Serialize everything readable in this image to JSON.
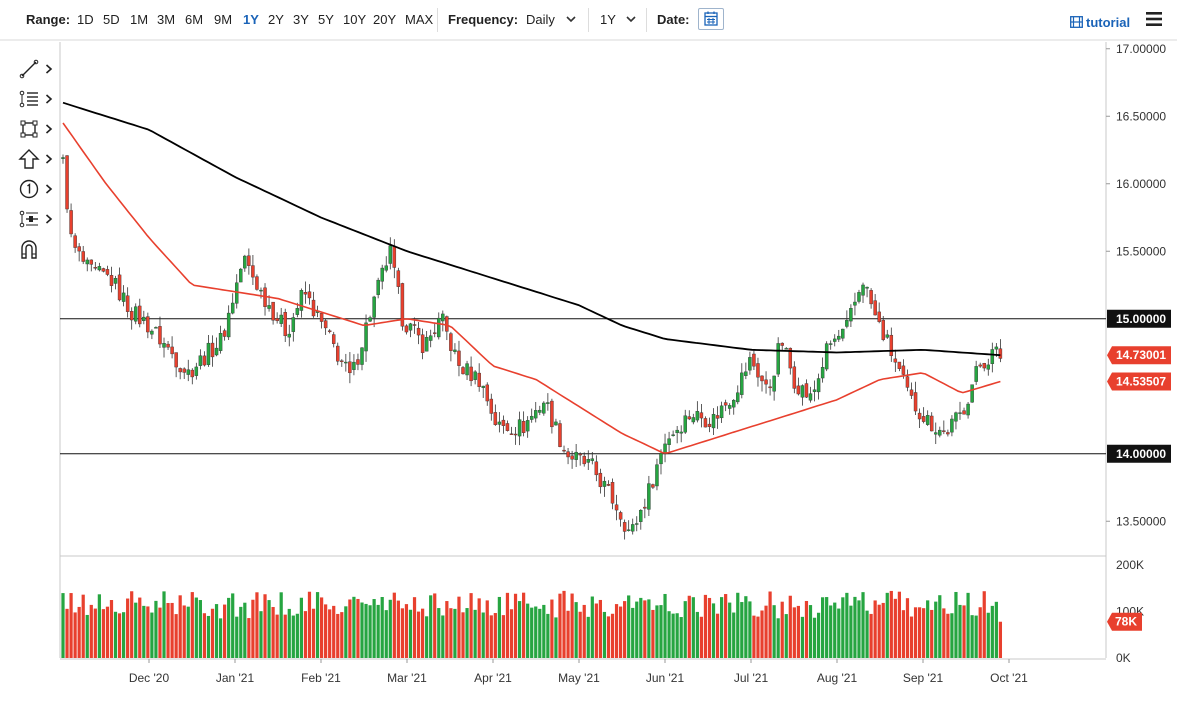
{
  "toolbar": {
    "range_label": "Range:",
    "ranges": [
      "1D",
      "5D",
      "1M",
      "3M",
      "6M",
      "9M",
      "1Y",
      "2Y",
      "3Y",
      "5Y",
      "10Y",
      "20Y",
      "MAX"
    ],
    "active_range": "1Y",
    "frequency_label": "Frequency:",
    "frequency_value": "Daily",
    "period_value": "1Y",
    "date_label": "Date:",
    "tutorial_label": "tutorial"
  },
  "tools": [
    "line-tool-icon",
    "fibonacci-tool-icon",
    "rectangle-tool-icon",
    "arrow-tool-icon",
    "counter-tool-icon",
    "measure-tool-icon",
    "magnet-tool-icon"
  ],
  "chart_data": {
    "type": "candlestick",
    "x_tick_labels": [
      "Dec '20",
      "Jan '21",
      "Feb '21",
      "Mar '21",
      "Apr '21",
      "May '21",
      "Jun '21",
      "Jul '21",
      "Aug '21",
      "Sep '21",
      "Oct '21"
    ],
    "y_tick_labels": [
      "17.00000",
      "16.50000",
      "16.00000",
      "15.50000",
      "13.50000"
    ],
    "ylim": [
      13.25,
      17.05
    ],
    "horizontal_lines": [
      {
        "value": 15.0,
        "label": "15.00000"
      },
      {
        "value": 14.0,
        "label": "14.00000"
      }
    ],
    "price_badges": [
      {
        "label": "14.73001",
        "value": 14.73,
        "color": "#e8402e"
      },
      {
        "label": "14.53507",
        "value": 14.535,
        "color": "#e8402e"
      }
    ],
    "colors": {
      "up": "#26a541",
      "down": "#e8402e",
      "ma_fast": "#e8402e",
      "ma_slow": "#000000"
    },
    "price_keypoints": [
      {
        "m": 0.0,
        "p": 16.15
      },
      {
        "m": 0.1,
        "p": 15.55
      },
      {
        "m": 0.3,
        "p": 15.35
      },
      {
        "m": 0.55,
        "p": 15.3
      },
      {
        "m": 0.8,
        "p": 15.05
      },
      {
        "m": 1.0,
        "p": 14.95
      },
      {
        "m": 1.45,
        "p": 14.6
      },
      {
        "m": 1.85,
        "p": 14.85
      },
      {
        "m": 2.1,
        "p": 15.45
      },
      {
        "m": 2.3,
        "p": 15.2
      },
      {
        "m": 2.6,
        "p": 14.9
      },
      {
        "m": 2.8,
        "p": 15.2
      },
      {
        "m": 3.1,
        "p": 14.85
      },
      {
        "m": 3.35,
        "p": 14.55
      },
      {
        "m": 3.55,
        "p": 15.0
      },
      {
        "m": 3.8,
        "p": 15.5
      },
      {
        "m": 3.95,
        "p": 15.0
      },
      {
        "m": 4.2,
        "p": 14.8
      },
      {
        "m": 4.4,
        "p": 15.0
      },
      {
        "m": 4.6,
        "p": 14.65
      },
      {
        "m": 4.85,
        "p": 14.55
      },
      {
        "m": 5.05,
        "p": 14.2
      },
      {
        "m": 5.35,
        "p": 14.2
      },
      {
        "m": 5.6,
        "p": 14.4
      },
      {
        "m": 5.85,
        "p": 14.0
      },
      {
        "m": 6.15,
        "p": 13.9
      },
      {
        "m": 6.45,
        "p": 13.6
      },
      {
        "m": 6.6,
        "p": 13.4
      },
      {
        "m": 6.8,
        "p": 13.7
      },
      {
        "m": 7.0,
        "p": 14.1
      },
      {
        "m": 7.3,
        "p": 14.3
      },
      {
        "m": 7.55,
        "p": 14.25
      },
      {
        "m": 7.8,
        "p": 14.45
      },
      {
        "m": 8.0,
        "p": 14.7
      },
      {
        "m": 8.2,
        "p": 14.45
      },
      {
        "m": 8.35,
        "p": 14.85
      },
      {
        "m": 8.5,
        "p": 14.55
      },
      {
        "m": 8.7,
        "p": 14.4
      },
      {
        "m": 8.9,
        "p": 14.8
      },
      {
        "m": 9.1,
        "p": 14.9
      },
      {
        "m": 9.3,
        "p": 15.3
      },
      {
        "m": 9.45,
        "p": 15.0
      },
      {
        "m": 9.6,
        "p": 14.8
      },
      {
        "m": 9.85,
        "p": 14.4
      },
      {
        "m": 10.05,
        "p": 14.25
      },
      {
        "m": 10.25,
        "p": 14.15
      },
      {
        "m": 10.45,
        "p": 14.3
      },
      {
        "m": 10.65,
        "p": 14.65
      },
      {
        "m": 10.83,
        "p": 14.75
      },
      {
        "m": 10.9,
        "p": 14.73
      }
    ],
    "ma_fast_keypoints": [
      {
        "m": 0.0,
        "p": 16.45
      },
      {
        "m": 0.5,
        "p": 16.0
      },
      {
        "m": 1.0,
        "p": 15.6
      },
      {
        "m": 1.5,
        "p": 15.25
      },
      {
        "m": 2.0,
        "p": 15.2
      },
      {
        "m": 2.5,
        "p": 15.15
      },
      {
        "m": 3.0,
        "p": 15.05
      },
      {
        "m": 3.5,
        "p": 14.95
      },
      {
        "m": 4.0,
        "p": 15.0
      },
      {
        "m": 4.5,
        "p": 14.95
      },
      {
        "m": 5.0,
        "p": 14.65
      },
      {
        "m": 5.5,
        "p": 14.55
      },
      {
        "m": 6.0,
        "p": 14.35
      },
      {
        "m": 6.5,
        "p": 14.15
      },
      {
        "m": 7.0,
        "p": 14.0
      },
      {
        "m": 7.5,
        "p": 14.1
      },
      {
        "m": 8.0,
        "p": 14.2
      },
      {
        "m": 8.5,
        "p": 14.3
      },
      {
        "m": 9.0,
        "p": 14.4
      },
      {
        "m": 9.5,
        "p": 14.55
      },
      {
        "m": 10.0,
        "p": 14.6
      },
      {
        "m": 10.45,
        "p": 14.45
      },
      {
        "m": 10.9,
        "p": 14.535
      }
    ],
    "ma_slow_keypoints": [
      {
        "m": 0.0,
        "p": 16.6
      },
      {
        "m": 1.0,
        "p": 16.4
      },
      {
        "m": 2.0,
        "p": 16.05
      },
      {
        "m": 3.0,
        "p": 15.75
      },
      {
        "m": 4.0,
        "p": 15.5
      },
      {
        "m": 5.0,
        "p": 15.3
      },
      {
        "m": 6.0,
        "p": 15.1
      },
      {
        "m": 6.5,
        "p": 14.95
      },
      {
        "m": 7.0,
        "p": 14.85
      },
      {
        "m": 8.0,
        "p": 14.77
      },
      {
        "m": 9.0,
        "p": 14.75
      },
      {
        "m": 10.0,
        "p": 14.77
      },
      {
        "m": 10.9,
        "p": 14.73
      }
    ],
    "volume": {
      "tick_labels": [
        "200K",
        "100K",
        "0K"
      ],
      "ylim": [
        0,
        200000
      ],
      "last_label": "78K",
      "last_value": 78000
    }
  }
}
